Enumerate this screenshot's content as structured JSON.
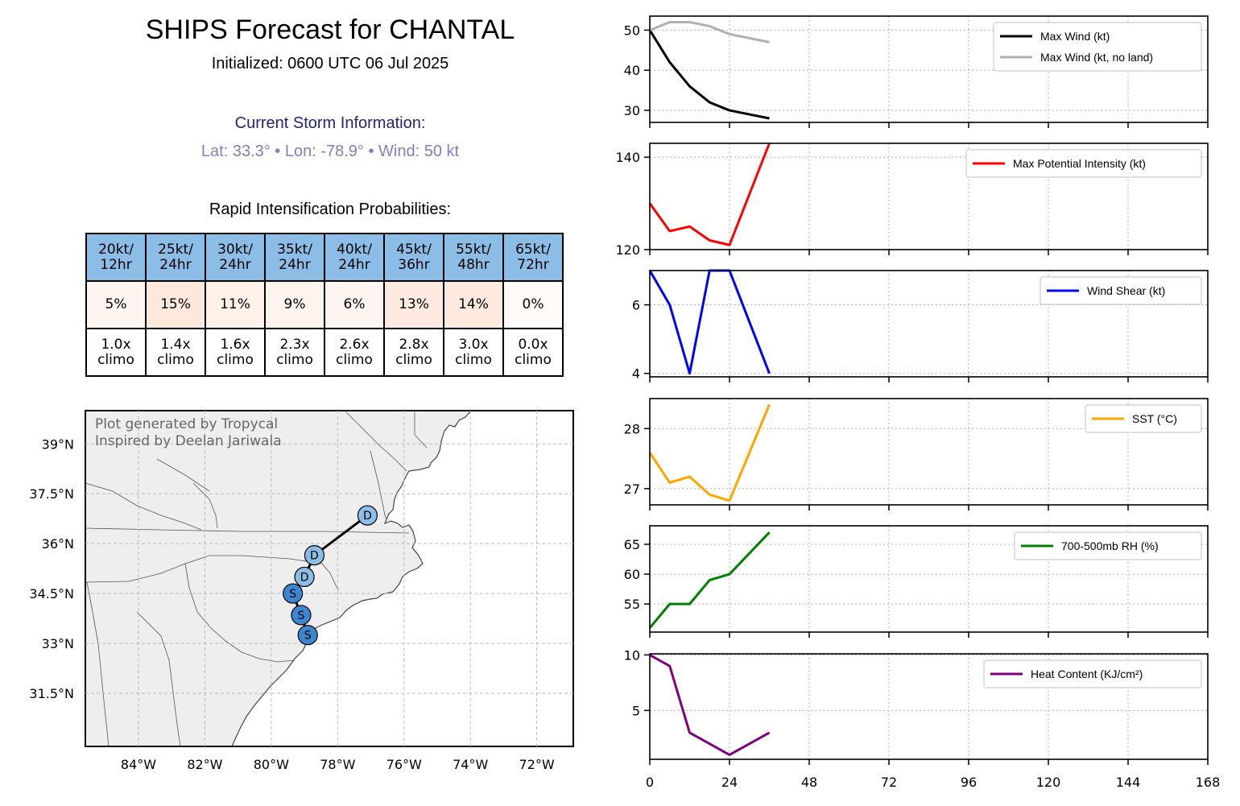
{
  "header": {
    "title": "SHIPS Forecast for CHANTAL",
    "initialized": "Initialized: 0600 UTC 06 Jul 2025",
    "current_heading": "Current Storm Information:",
    "current_info": "Lat: 33.3° • Lon: -78.9° • Wind: 50 kt",
    "ri_heading": "Rapid Intensification Probabilities:"
  },
  "ri_table": {
    "headers": [
      "20kt/\n12hr",
      "25kt/\n24hr",
      "30kt/\n24hr",
      "35kt/\n24hr",
      "40kt/\n24hr",
      "45kt/\n36hr",
      "55kt/\n48hr",
      "65kt/\n72hr"
    ],
    "probabilities": [
      "5%",
      "15%",
      "11%",
      "9%",
      "6%",
      "13%",
      "14%",
      "0%"
    ],
    "prob_colors": [
      "#fff5f0",
      "#fee8dd",
      "#fff0e8",
      "#fff3ee",
      "#fff5f0",
      "#feeae1",
      "#fee9df",
      "#fffbf9"
    ],
    "climo": [
      "1.0x\nclimo",
      "1.4x\nclimo",
      "1.6x\nclimo",
      "2.3x\nclimo",
      "2.6x\nclimo",
      "2.8x\nclimo",
      "3.0x\nclimo",
      "0.0x\nclimo"
    ]
  },
  "map": {
    "credit_line1": "Plot generated by Tropycal",
    "credit_line2": "Inspired by Deelan Jariwala",
    "lon_ticks": [
      "84°W",
      "82°W",
      "80°W",
      "78°W",
      "76°W",
      "74°W",
      "72°W"
    ],
    "lat_ticks": [
      "39°N",
      "37.5°N",
      "36°N",
      "34.5°N",
      "33°N",
      "31.5°N"
    ],
    "land_color": "#eeeeee",
    "track": [
      {
        "label": "S",
        "lon": -78.9,
        "lat": 33.25,
        "color": "#3c86cf"
      },
      {
        "label": "S",
        "lon": -79.1,
        "lat": 33.85,
        "color": "#3c86cf"
      },
      {
        "label": "S",
        "lon": -79.35,
        "lat": 34.5,
        "color": "#3c86cf"
      },
      {
        "label": "D",
        "lon": -79.0,
        "lat": 35.0,
        "color": "#8bbde6"
      },
      {
        "label": "D",
        "lon": -78.7,
        "lat": 35.65,
        "color": "#8bbde6"
      },
      {
        "label": "D",
        "lon": -77.1,
        "lat": 36.85,
        "color": "#8bbde6"
      }
    ]
  },
  "chart_data": [
    {
      "type": "line",
      "x_ticks": [
        "0",
        "24",
        "48",
        "72",
        "96",
        "120",
        "144",
        "168"
      ],
      "xlim": [
        0,
        168
      ],
      "ylim": [
        27,
        53.5
      ],
      "y_ticks": [
        "30",
        "40",
        "50"
      ],
      "y_tick_values": [
        30,
        40,
        50
      ],
      "legend": "top-right",
      "series": [
        {
          "name": "Max Wind (kt)",
          "color": "#000000",
          "x": [
            0,
            6,
            12,
            18,
            24,
            30,
            36
          ],
          "values": [
            50,
            42,
            36,
            32,
            30,
            29,
            28
          ]
        },
        {
          "name": "Max Wind (kt, no land)",
          "color": "#b0b0b0",
          "x": [
            0,
            6,
            12,
            18,
            24,
            30,
            36
          ],
          "values": [
            50,
            52,
            52,
            51,
            49,
            48,
            47
          ]
        }
      ]
    },
    {
      "type": "line",
      "xlim": [
        0,
        168
      ],
      "ylim": [
        120,
        143
      ],
      "y_ticks": [
        "120",
        "140"
      ],
      "y_tick_values": [
        120,
        140
      ],
      "legend": "top-right",
      "series": [
        {
          "name": "Max Potential Intensity (kt)",
          "color": "#ff0000",
          "x": [
            0,
            6,
            12,
            18,
            24,
            30,
            36
          ],
          "values": [
            130,
            124,
            125,
            122,
            121,
            132,
            143
          ]
        }
      ]
    },
    {
      "type": "line",
      "xlim": [
        0,
        168
      ],
      "ylim": [
        3.9,
        7.0
      ],
      "y_ticks": [
        "4",
        "6"
      ],
      "y_tick_values": [
        4,
        6
      ],
      "legend": "top-right",
      "series": [
        {
          "name": "Wind Shear (kt)",
          "color": "#0000ff",
          "x": [
            0,
            6,
            12,
            18,
            24,
            30,
            36
          ],
          "values": [
            7,
            6,
            4,
            7,
            7,
            5.5,
            4
          ]
        }
      ]
    },
    {
      "type": "line",
      "xlim": [
        0,
        168
      ],
      "ylim": [
        26.73,
        28.5
      ],
      "y_ticks": [
        "27",
        "28"
      ],
      "y_tick_values": [
        27,
        28
      ],
      "legend": "top-right",
      "series": [
        {
          "name": "SST (°C)",
          "color": "#ffa500",
          "x": [
            0,
            6,
            12,
            18,
            24,
            30,
            36
          ],
          "values": [
            27.6,
            27.1,
            27.2,
            26.9,
            26.8,
            27.6,
            28.4
          ]
        }
      ]
    },
    {
      "type": "line",
      "xlim": [
        0,
        168
      ],
      "ylim": [
        50.3,
        68.1
      ],
      "y_ticks": [
        "55",
        "60",
        "65"
      ],
      "y_tick_values": [
        55,
        60,
        65
      ],
      "legend": "top-right",
      "series": [
        {
          "name": "700-500mb RH (%)",
          "color": "#008000",
          "x": [
            0,
            6,
            12,
            18,
            24,
            30,
            36
          ],
          "values": [
            51,
            55,
            55,
            59,
            60,
            63.5,
            67
          ]
        }
      ]
    },
    {
      "type": "line",
      "xlim": [
        0,
        168
      ],
      "ylim": [
        0.6,
        10.1
      ],
      "y_ticks": [
        "5",
        "10"
      ],
      "y_tick_values": [
        5,
        10
      ],
      "legend": "top-right",
      "series": [
        {
          "name": "Heat Content (KJ/cm²)",
          "color": "#800080",
          "x": [
            0,
            6,
            12,
            18,
            24,
            30,
            36
          ],
          "values": [
            10,
            9,
            3,
            2,
            1,
            2,
            3
          ]
        }
      ]
    }
  ]
}
